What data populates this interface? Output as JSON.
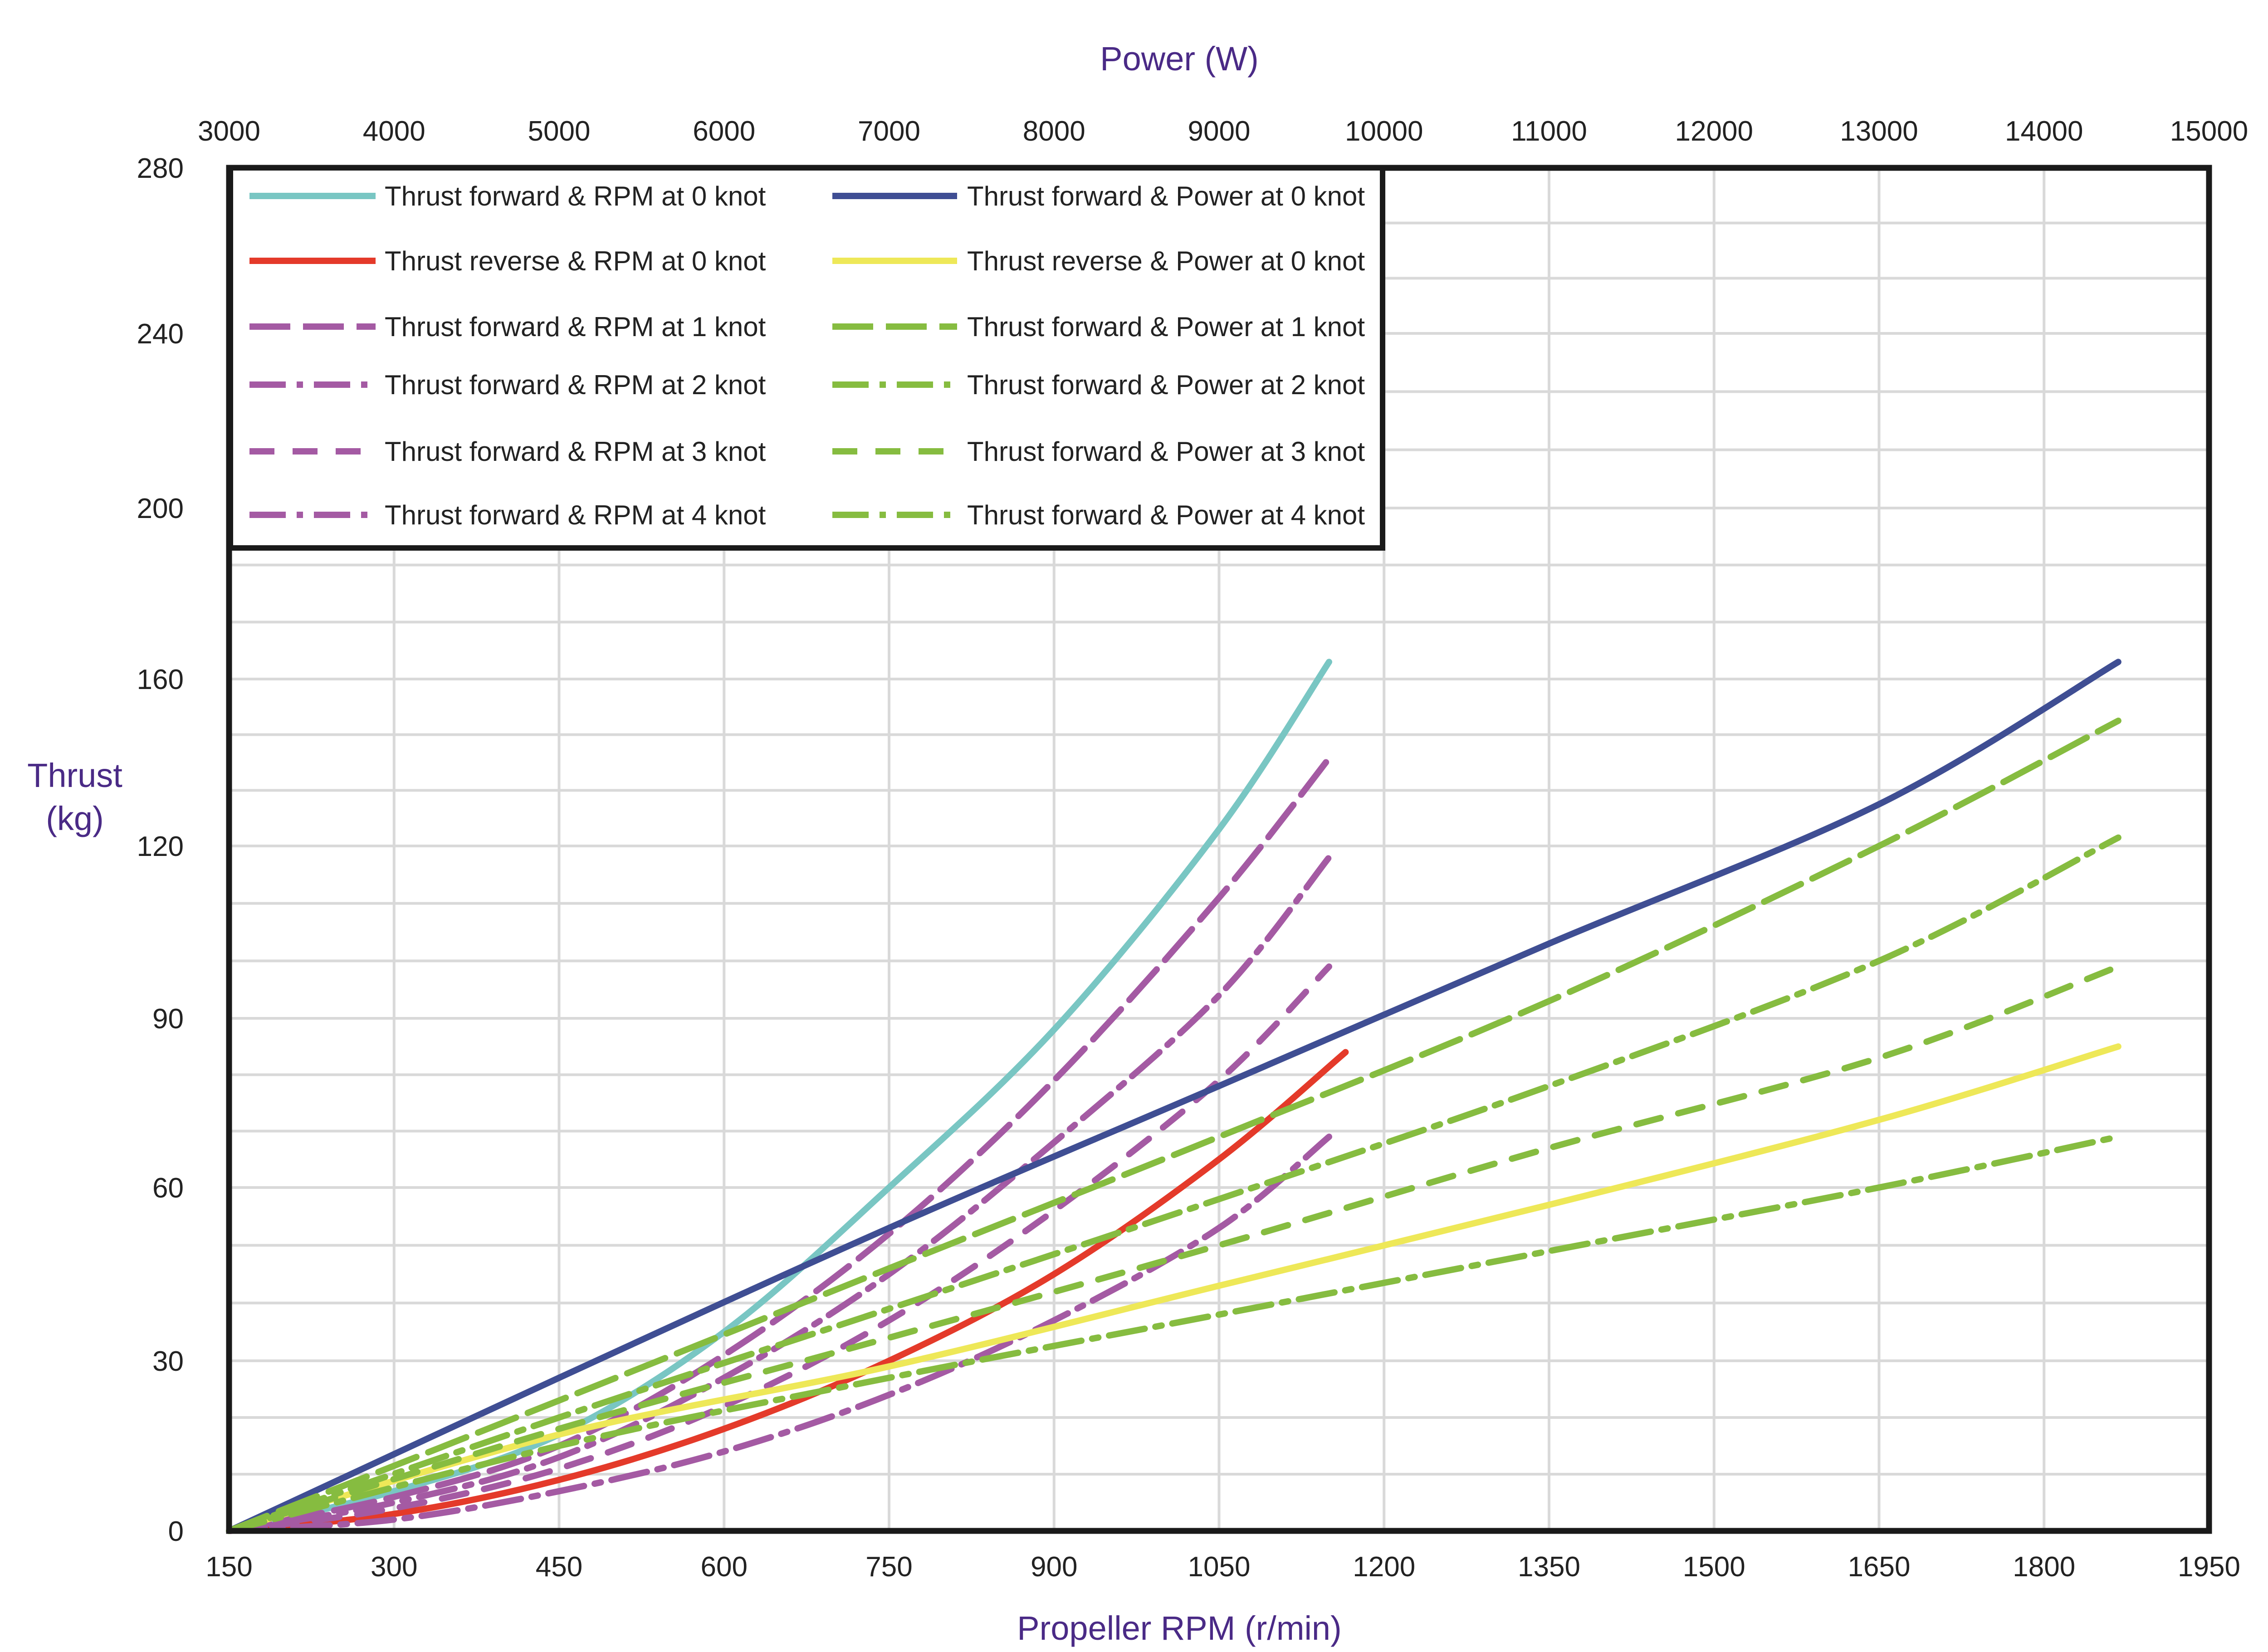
{
  "chart_data": {
    "type": "line",
    "title": "",
    "top_axis": {
      "label": "Power (W)",
      "range": [
        3000,
        15000
      ],
      "tick_labels": [
        "3000",
        "4000",
        "5000",
        "6000",
        "7000",
        "8000",
        "9000",
        "10000",
        "11000",
        "12000",
        "13000",
        "14000",
        "15000"
      ]
    },
    "bottom_axis": {
      "label": "Propeller RPM (r/min)",
      "range": [
        150,
        1950
      ],
      "tick_labels": [
        "150",
        "300",
        "450",
        "600",
        "750",
        "900",
        "1050",
        "1200",
        "1350",
        "1500",
        "1650",
        "1800",
        "1950"
      ]
    },
    "y_axis": {
      "label_line1": "Thrust",
      "label_line2": "(kg)",
      "tick_values": [
        0,
        30,
        60,
        90,
        120,
        160,
        200,
        240,
        280
      ],
      "tick_labels": [
        "0",
        "30",
        "60",
        "90",
        "120",
        "160",
        "200",
        "240",
        "280"
      ]
    },
    "grid": true,
    "legend_position": "top-left",
    "series": [
      {
        "name": "Thrust forward &  RPM at 0 knot",
        "axis": "rpm",
        "color": "#79c6c3",
        "dash": "solid",
        "points": [
          [
            150,
            0
          ],
          [
            300,
            7
          ],
          [
            450,
            17
          ],
          [
            600,
            35
          ],
          [
            750,
            60
          ],
          [
            900,
            88
          ],
          [
            1050,
            124
          ],
          [
            1150,
            164
          ]
        ]
      },
      {
        "name": "Thrust reverse  &  RPM at 0 knot",
        "axis": "rpm",
        "color": "#e43a2a",
        "dash": "solid",
        "points": [
          [
            150,
            0
          ],
          [
            300,
            3
          ],
          [
            450,
            9
          ],
          [
            600,
            18
          ],
          [
            750,
            30
          ],
          [
            900,
            45
          ],
          [
            1050,
            65
          ],
          [
            1165,
            84
          ]
        ]
      },
      {
        "name": "Thrust forward &  RPM at 1 knot",
        "axis": "rpm",
        "color": "#a45aa3",
        "dash": "long-dash",
        "points": [
          [
            150,
            0
          ],
          [
            300,
            6
          ],
          [
            450,
            15
          ],
          [
            600,
            31
          ],
          [
            750,
            52
          ],
          [
            900,
            79
          ],
          [
            1050,
            111
          ],
          [
            1150,
            141
          ]
        ]
      },
      {
        "name": "Thrust forward &  RPM at 2 knot",
        "axis": "rpm",
        "color": "#a45aa3",
        "dash": "dash-dot",
        "points": [
          [
            150,
            0
          ],
          [
            300,
            5
          ],
          [
            450,
            13
          ],
          [
            600,
            27
          ],
          [
            750,
            45
          ],
          [
            900,
            68
          ],
          [
            1050,
            94
          ],
          [
            1150,
            118
          ]
        ]
      },
      {
        "name": "Thrust forward &  RPM at 3 knot",
        "axis": "rpm",
        "color": "#a45aa3",
        "dash": "dash",
        "points": [
          [
            150,
            0
          ],
          [
            300,
            4
          ],
          [
            450,
            11
          ],
          [
            600,
            22
          ],
          [
            750,
            37
          ],
          [
            900,
            56
          ],
          [
            1050,
            79
          ],
          [
            1150,
            99
          ]
        ]
      },
      {
        "name": "Thrust forward &  RPM at 4 knot",
        "axis": "rpm",
        "color": "#a45aa3",
        "dash": "dash-dot",
        "points": [
          [
            150,
            0
          ],
          [
            300,
            2
          ],
          [
            450,
            7
          ],
          [
            600,
            14
          ],
          [
            750,
            24
          ],
          [
            900,
            37
          ],
          [
            1050,
            53
          ],
          [
            1150,
            69
          ]
        ]
      },
      {
        "name": "Thrust forward & Power at 0 knot",
        "axis": "power",
        "color": "#3f4e93",
        "dash": "solid",
        "points": [
          [
            3000,
            0
          ],
          [
            5000,
            27
          ],
          [
            7000,
            53
          ],
          [
            9000,
            78
          ],
          [
            11000,
            103
          ],
          [
            13000,
            130
          ],
          [
            14450,
            164
          ]
        ]
      },
      {
        "name": "Thrust reverse & Power at 0 knot",
        "axis": "power",
        "color": "#eee858",
        "dash": "solid",
        "points": [
          [
            3000,
            0
          ],
          [
            5000,
            17
          ],
          [
            7000,
            29
          ],
          [
            9000,
            43
          ],
          [
            11000,
            57
          ],
          [
            13000,
            72
          ],
          [
            14450,
            85
          ]
        ]
      },
      {
        "name": "Thrust forward & Power at 1 knot",
        "axis": "power",
        "color": "#86bc40",
        "dash": "long-dash",
        "points": [
          [
            3000,
            0
          ],
          [
            5000,
            23
          ],
          [
            7000,
            46
          ],
          [
            9000,
            69
          ],
          [
            11000,
            93
          ],
          [
            13000,
            120
          ],
          [
            14450,
            150
          ]
        ]
      },
      {
        "name": "Thrust forward & Power at 2 knot",
        "axis": "power",
        "color": "#86bc40",
        "dash": "dash-dot",
        "points": [
          [
            3000,
            0
          ],
          [
            5000,
            20
          ],
          [
            7000,
            39
          ],
          [
            9000,
            58
          ],
          [
            11000,
            78
          ],
          [
            13000,
            100
          ],
          [
            14450,
            122
          ]
        ]
      },
      {
        "name": "Thrust forward & Power at 3 knot",
        "axis": "power",
        "color": "#86bc40",
        "dash": "dash",
        "points": [
          [
            3000,
            0
          ],
          [
            5000,
            18
          ],
          [
            7000,
            34
          ],
          [
            9000,
            50
          ],
          [
            11000,
            67
          ],
          [
            13000,
            83
          ],
          [
            14450,
            99
          ]
        ]
      },
      {
        "name": "Thrust forward & Power at 4 knot",
        "axis": "power",
        "color": "#86bc40",
        "dash": "dash-dot",
        "points": [
          [
            3000,
            0
          ],
          [
            5000,
            15
          ],
          [
            7000,
            27
          ],
          [
            9000,
            38
          ],
          [
            11000,
            49
          ],
          [
            13000,
            60
          ],
          [
            14450,
            69
          ]
        ]
      }
    ]
  }
}
